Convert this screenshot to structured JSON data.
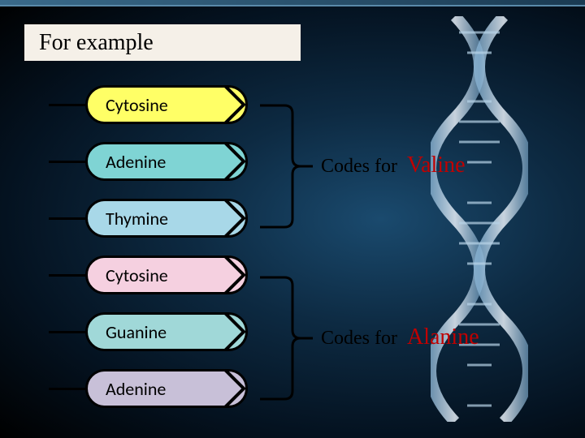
{
  "title": "For example",
  "bases": [
    {
      "label": "Cytosine",
      "fill": "#ffff66"
    },
    {
      "label": "Adenine",
      "fill": "#7fd4d4"
    },
    {
      "label": "Thymine",
      "fill": "#a8d8e8"
    },
    {
      "label": "Cytosine",
      "fill": "#f5d0e0"
    },
    {
      "label": "Guanine",
      "fill": "#a0d8d8"
    },
    {
      "label": "Adenine",
      "fill": "#c8c0d8"
    }
  ],
  "codons": [
    {
      "codes_for": "Codes for",
      "amino_acid": "Valine"
    },
    {
      "codes_for": "Codes for",
      "amino_acid": "Alanine"
    }
  ],
  "styles": {
    "title_bg": "#f5f0e8",
    "title_fontsize": 28,
    "base_fontsize": 22,
    "codes_fontsize": 24,
    "amino_fontsize": 28,
    "amino_color": "#c00000",
    "codes_color": "#000000",
    "border_color": "#000000",
    "bracket_color": "#000000",
    "background_gradient": [
      "#1a4a6e",
      "#0d2a42",
      "#041220",
      "#000000"
    ]
  }
}
